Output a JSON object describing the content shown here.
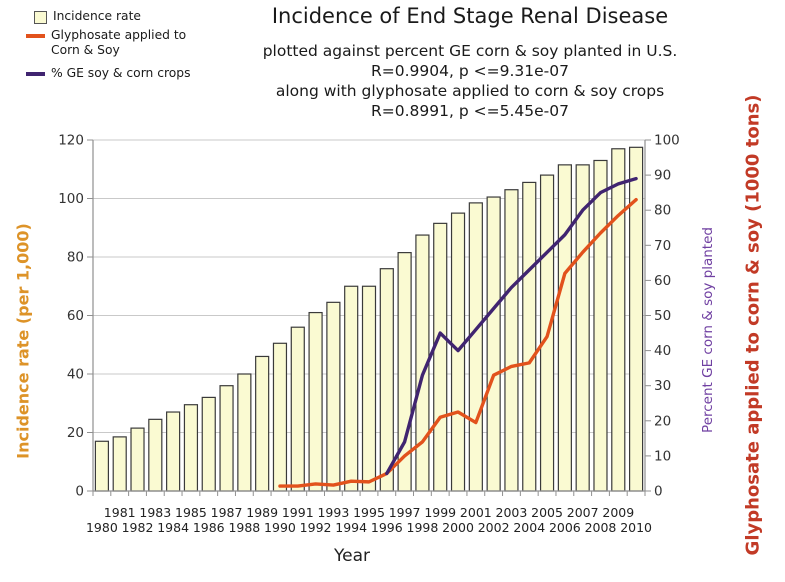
{
  "title": "Incidence of End Stage Renal Disease",
  "subtitle_lines": [
    "plotted against percent GE corn & soy planted in U.S.",
    "R=0.9904, p <=9.31e-07",
    "along with glyphosate applied to corn & soy crops",
    "R=0.8991, p <=5.45e-07"
  ],
  "legend": {
    "incidence_label": "Incidence rate",
    "glyphosate_label_line1": "Glyphosate applied to",
    "glyphosate_label_line2": "Corn & Soy",
    "ge_label": "% GE soy & corn crops"
  },
  "axis_titles": {
    "left": "Incidence rate (per 1,000)",
    "right_inner": "Percent GE corn & soy planted",
    "right_outer": "Glyphosate applied to corn & soy (1000 tons)",
    "x": "Year"
  },
  "colors": {
    "bar_fill": "#fafad2",
    "bar_border": "#3a3a3a",
    "glyphosate_line": "#e2521c",
    "ge_line": "#402470",
    "left_axis_title": "#dd9328",
    "right_inner_title": "#7040a2",
    "right_outer_title": "#c23a26",
    "grid": "#c9c9c9",
    "axis": "#909090",
    "tick_text": "#333333",
    "year_text": "#222222"
  },
  "chart_data": {
    "type": "combo",
    "x": [
      1980,
      1981,
      1982,
      1983,
      1984,
      1985,
      1986,
      1987,
      1988,
      1989,
      1990,
      1991,
      1992,
      1993,
      1994,
      1995,
      1996,
      1997,
      1998,
      1999,
      2000,
      2001,
      2002,
      2003,
      2004,
      2005,
      2006,
      2007,
      2008,
      2009,
      2010
    ],
    "xlabel": "Year",
    "left_axis": {
      "label": "Incidence rate (per 1,000)",
      "min": 0,
      "max": 120,
      "step": 20
    },
    "right_axis": {
      "label": "Glyphosate (1000 tons) / Percent GE planted",
      "min": 0,
      "max": 100,
      "step": 10
    },
    "grid": true,
    "legend_position": "top-left",
    "series": [
      {
        "name": "Incidence rate",
        "type": "bar",
        "axis": "left",
        "start_year": 1980,
        "values": [
          17,
          18.5,
          21.5,
          24.5,
          27,
          29.5,
          32,
          36,
          40,
          46,
          50.5,
          56,
          61,
          64.5,
          70,
          70,
          76,
          81.5,
          87.5,
          91.5,
          95,
          98.5,
          100.5,
          103,
          105.5,
          108,
          111.5,
          111.5,
          113,
          117,
          117.5
        ]
      },
      {
        "name": "Glyphosate applied to Corn & Soy",
        "type": "line",
        "axis": "right",
        "start_year": 1990,
        "values": [
          1.4,
          1.4,
          2,
          1.7,
          2.8,
          2.6,
          5,
          10,
          14,
          21,
          22.5,
          19.5,
          33,
          35.5,
          36.5,
          44,
          62,
          68,
          73.5,
          78.5,
          83
        ]
      },
      {
        "name": "% GE soy & corn crops",
        "type": "line",
        "axis": "right",
        "start_year": 1996,
        "values": [
          5,
          14,
          33,
          45,
          40,
          46,
          52,
          58,
          63,
          68,
          73,
          80,
          85,
          87.5,
          89
        ]
      }
    ]
  }
}
